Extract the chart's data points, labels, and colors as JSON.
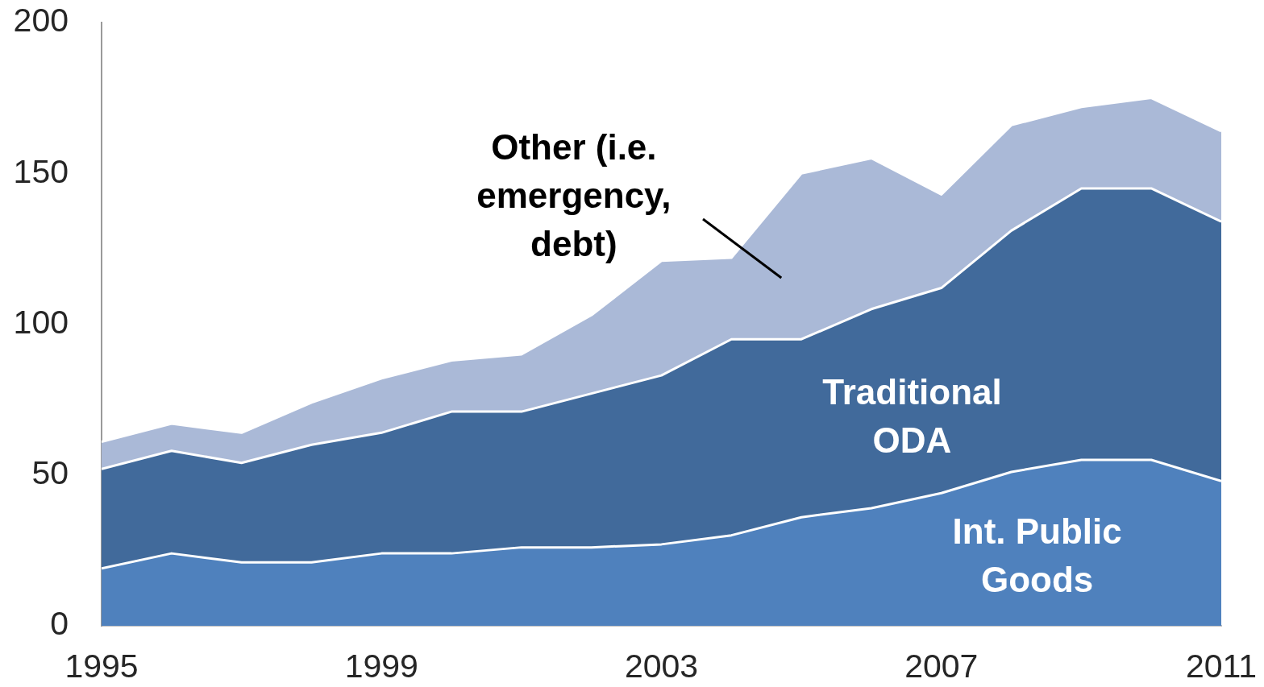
{
  "chart_data": {
    "type": "area",
    "stacked": true,
    "grid": false,
    "legend": false,
    "x": [
      1995,
      1996,
      1997,
      1998,
      1999,
      2000,
      2001,
      2002,
      2003,
      2004,
      2005,
      2006,
      2007,
      2008,
      2009,
      2010,
      2011
    ],
    "xlim": [
      1995,
      2011
    ],
    "xticks": [
      1995,
      1999,
      2003,
      2007,
      2011
    ],
    "ylim": [
      0,
      200
    ],
    "yticks": [
      0,
      50,
      100,
      150,
      200
    ],
    "series": [
      {
        "name": "Int. Public Goods",
        "color": "#4f81bd",
        "values": [
          19,
          24,
          21,
          21,
          24,
          24,
          26,
          26,
          27,
          30,
          36,
          39,
          44,
          51,
          55,
          55,
          48
        ]
      },
      {
        "name": "Traditional ODA",
        "color": "#416a9b",
        "values": [
          33,
          34,
          33,
          39,
          40,
          47,
          45,
          51,
          56,
          65,
          59,
          66,
          68,
          80,
          90,
          90,
          86
        ]
      },
      {
        "name": "Other (i.e. emergency, debt)",
        "color": "#aab9d7",
        "values": [
          9,
          9,
          10,
          14,
          18,
          17,
          19,
          26,
          38,
          27,
          55,
          50,
          31,
          35,
          27,
          30,
          30
        ]
      }
    ]
  }
}
